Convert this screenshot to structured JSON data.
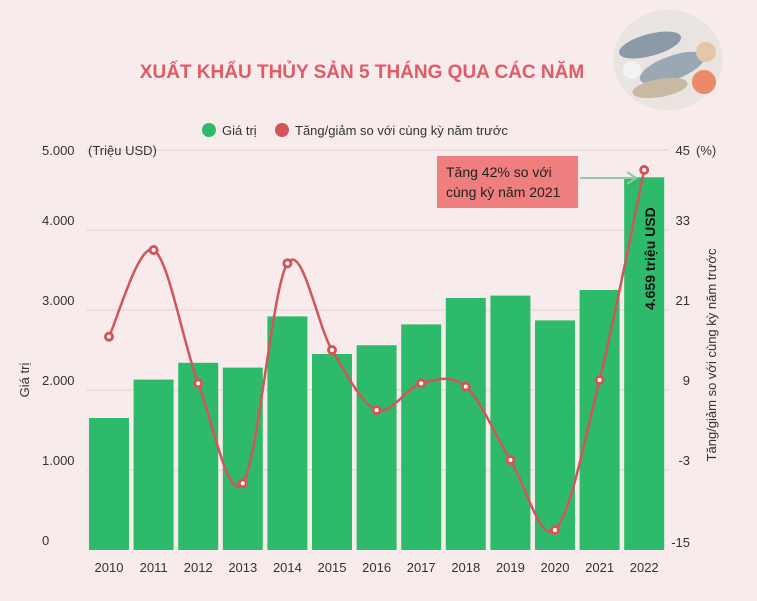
{
  "chart_data": {
    "type": "bar",
    "title": "XUẤT KHẨU THỦY SẢN 5 THÁNG QUA CÁC NĂM",
    "categories": [
      "2010",
      "2011",
      "2012",
      "2013",
      "2014",
      "2015",
      "2016",
      "2017",
      "2018",
      "2019",
      "2020",
      "2021",
      "2022"
    ],
    "series": [
      {
        "name": "Giá trị",
        "type": "bar",
        "axis": "left",
        "color": "#2dbb6b",
        "values": [
          1650,
          2130,
          2340,
          2280,
          2920,
          2450,
          2560,
          2820,
          3150,
          3180,
          2870,
          3250,
          4659
        ]
      },
      {
        "name": "Tăng/giảm so với cùng kỳ năm trước",
        "type": "line",
        "axis": "right",
        "color": "#d25558",
        "values": [
          17,
          30,
          10,
          -5,
          28,
          15,
          6,
          10,
          9.5,
          -1.5,
          -12,
          10.5,
          42
        ]
      }
    ],
    "left_axis": {
      "label": "Giá trị",
      "unit": "(Triệu USD)",
      "ylim": [
        0,
        5000
      ],
      "ticks": [
        "0",
        "1.000",
        "2.000",
        "3.000",
        "4.000",
        "5.000"
      ]
    },
    "right_axis": {
      "label": "Tăng/giảm so với cùng kỳ năm trước",
      "unit": "(%)",
      "ylim": [
        -15,
        45
      ],
      "ticks": [
        "-15",
        "-3",
        "9",
        "21",
        "33",
        "45"
      ]
    },
    "annotations": {
      "callout_line1": "Tăng 42% so với",
      "callout_line2": "cùng kỳ năm 2021",
      "last_bar_label": "4.659 triệu USD"
    },
    "legend_position": "top-center",
    "grid": true
  }
}
